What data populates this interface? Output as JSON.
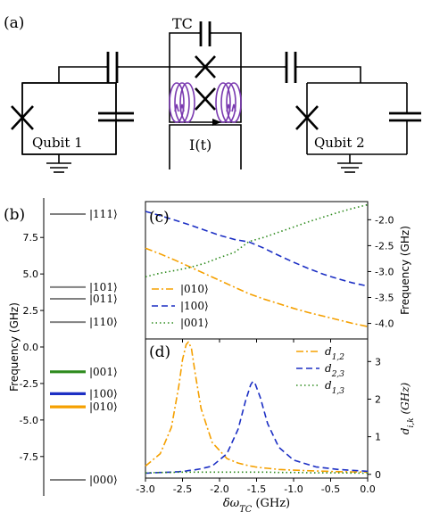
{
  "panels": {
    "a": {
      "label": "(a)",
      "tc_label": "TC",
      "qubit1_label": "Qubit 1",
      "qubit2_label": "Qubit 2",
      "current_label": "I(t)"
    },
    "b": {
      "label": "(b)"
    },
    "c": {
      "label": "(c)"
    },
    "d": {
      "label": "(d)"
    }
  },
  "chart_data": [
    {
      "panel": "b",
      "type": "level-diagram",
      "ylabel": "Frequency (GHz)",
      "ylim": [
        -10.2,
        10.2
      ],
      "yticks": [
        "-7.5",
        "-5.0",
        "-2.5",
        "0.0",
        "2.5",
        "5.0",
        "7.5"
      ],
      "levels": [
        {
          "label": "|111⟩",
          "value": 9.1,
          "color": "#808080"
        },
        {
          "label": "|101⟩",
          "value": 4.1,
          "color": "#808080"
        },
        {
          "label": "|011⟩",
          "value": 3.3,
          "color": "#808080"
        },
        {
          "label": "|110⟩",
          "value": 1.7,
          "color": "#808080"
        },
        {
          "label": "|001⟩",
          "value": -1.7,
          "color": "#2e8b1e"
        },
        {
          "label": "|100⟩",
          "value": -3.2,
          "color": "#1c2fc4"
        },
        {
          "label": "|010⟩",
          "value": -4.1,
          "color": "#f5a000"
        },
        {
          "label": "|000⟩",
          "value": -9.1,
          "color": "#808080"
        }
      ]
    },
    {
      "panel": "c",
      "type": "line",
      "ylabel": "Frequency (GHz)",
      "xlim": [
        -3.0,
        0.0
      ],
      "ylim": [
        -4.3,
        -1.65
      ],
      "yticks": [
        "-2.0",
        "-2.5",
        "-3.0",
        "-3.5",
        "-4.0"
      ],
      "x": [
        -3.0,
        -2.8,
        -2.6,
        -2.4,
        -2.2,
        -2.0,
        -1.8,
        -1.6,
        -1.4,
        -1.2,
        -1.0,
        -0.8,
        -0.6,
        -0.4,
        -0.2,
        0.0
      ],
      "series": [
        {
          "name": "|010⟩",
          "style": "dashdot",
          "color": "#f5a000",
          "values": [
            -2.55,
            -2.66,
            -2.78,
            -2.91,
            -3.04,
            -3.17,
            -3.3,
            -3.43,
            -3.53,
            -3.62,
            -3.71,
            -3.79,
            -3.86,
            -3.93,
            -4.0,
            -4.06
          ]
        },
        {
          "name": "|100⟩",
          "style": "dashed",
          "color": "#1c2fc4",
          "values": [
            -1.84,
            -1.92,
            -2.01,
            -2.1,
            -2.2,
            -2.3,
            -2.38,
            -2.43,
            -2.55,
            -2.69,
            -2.82,
            -2.94,
            -3.05,
            -3.14,
            -3.22,
            -3.28
          ]
        },
        {
          "name": "|001⟩",
          "style": "dotted",
          "color": "#2e8b1e",
          "values": [
            -3.1,
            -3.03,
            -2.98,
            -2.92,
            -2.84,
            -2.73,
            -2.63,
            -2.42,
            -2.34,
            -2.24,
            -2.14,
            -2.04,
            -1.95,
            -1.86,
            -1.78,
            -1.71
          ]
        }
      ]
    },
    {
      "panel": "d",
      "type": "line",
      "xlabel": "δω_TC (GHz)",
      "ylabel": "d_{i,k} (GHz)",
      "xlim": [
        -3.0,
        0.0
      ],
      "ylim": [
        -0.1,
        3.6
      ],
      "xticks": [
        "-3.0",
        "-2.5",
        "-2.0",
        "-1.5",
        "-1.0",
        "-0.5",
        "0.0"
      ],
      "yticks": [
        "0",
        "1",
        "2",
        "3"
      ],
      "x": [
        -3.0,
        -2.8,
        -2.65,
        -2.55,
        -2.5,
        -2.45,
        -2.42,
        -2.38,
        -2.33,
        -2.25,
        -2.1,
        -1.9,
        -1.75,
        -1.65,
        -1.58,
        -1.55,
        -1.52,
        -1.45,
        -1.35,
        -1.2,
        -1.0,
        -0.7,
        -0.4,
        0.0
      ],
      "series": [
        {
          "name": "d_{1,2}",
          "style": "dashdot",
          "color": "#f5a000",
          "values": [
            0.22,
            0.55,
            1.25,
            2.35,
            3.05,
            3.45,
            3.52,
            3.35,
            2.7,
            1.75,
            0.85,
            0.42,
            0.3,
            0.25,
            0.22,
            0.21,
            0.2,
            0.18,
            0.16,
            0.13,
            0.11,
            0.09,
            0.07,
            0.06
          ]
        },
        {
          "name": "d_{2,3}",
          "style": "dashed",
          "color": "#1c2fc4",
          "values": [
            0.03,
            0.05,
            0.06,
            0.07,
            0.08,
            0.09,
            0.1,
            0.11,
            0.12,
            0.15,
            0.22,
            0.55,
            1.2,
            1.95,
            2.38,
            2.47,
            2.42,
            2.05,
            1.35,
            0.72,
            0.38,
            0.2,
            0.13,
            0.08
          ]
        },
        {
          "name": "d_{1,3}",
          "style": "dotted",
          "color": "#2e8b1e",
          "values": [
            0.04,
            0.05,
            0.05,
            0.06,
            0.06,
            0.06,
            0.06,
            0.06,
            0.06,
            0.06,
            0.06,
            0.06,
            0.06,
            0.06,
            0.06,
            0.06,
            0.06,
            0.06,
            0.06,
            0.05,
            0.05,
            0.04,
            0.04,
            0.03
          ]
        }
      ]
    }
  ]
}
